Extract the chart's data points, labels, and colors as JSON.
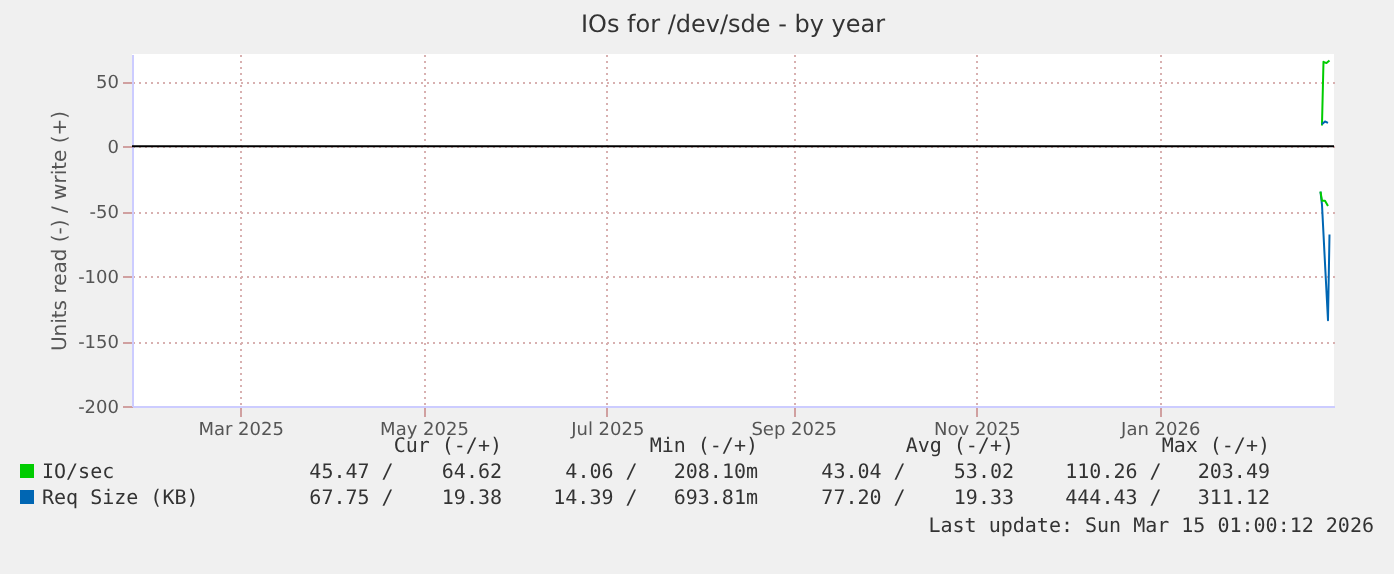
{
  "chart_data": {
    "type": "line",
    "title": "IOs for /dev/sde - by year",
    "ylabel": "Units read (-) / write (+)",
    "xlim": [
      "2025-02-08",
      "2026-03-15"
    ],
    "xticks": [
      {
        "value": "2025-03-16",
        "label": "Mar 2025"
      },
      {
        "value": "2025-05-16",
        "label": "May 2025"
      },
      {
        "value": "2025-07-16",
        "label": "Jul 2025"
      },
      {
        "value": "2025-09-16",
        "label": "Sep 2025"
      },
      {
        "value": "2025-11-16",
        "label": "Nov 2025"
      },
      {
        "value": "2026-01-16",
        "label": "Jan 2026"
      }
    ],
    "ylim": [
      -200,
      71
    ],
    "yticks": [
      -200,
      -150,
      -100,
      -50,
      0,
      50
    ],
    "grid": true,
    "legend": "bottom",
    "ref_lines": [
      {
        "axis": "y",
        "value": 0,
        "color": "#000000"
      }
    ],
    "series": [
      {
        "name": "IO/sec",
        "color": "#00cc00",
        "x": [
          "2026-03-11T00:00",
          "2026-03-11T12:00",
          "2026-03-12T12:00",
          "2026-03-13T12:00"
        ],
        "values": [
          16,
          65,
          64,
          66
        ]
      },
      {
        "name": "Req Size (KB)",
        "color": "#0066b3",
        "x": [
          "2026-03-10T12:00",
          "2026-03-11T00:00",
          "2026-03-12T00:00",
          "2026-03-13T00:00",
          "2026-03-13T12:00"
        ],
        "values": [
          -35,
          -45,
          -90,
          -134,
          -68
        ]
      },
      {
        "color": "#00cc00",
        "x": [
          "2026-03-10T12:00",
          "2026-03-11T00:00",
          "2026-03-12T00:00",
          "2026-03-13T00:00"
        ],
        "values": [
          -35,
          -42,
          -42,
          -46
        ]
      },
      {
        "color": "#0066b3",
        "x": [
          "2026-03-11T00:00",
          "2026-03-12T00:00",
          "2026-03-13T00:00"
        ],
        "values": [
          17,
          19,
          18
        ]
      }
    ],
    "annotations": [
      "Cur (-/+)",
      "Min (-/+)",
      "Avg (-/+)",
      "Max (-/+)",
      "45.47 /    64.62",
      "4.06 /   208.10m",
      "43.04 /    53.02",
      "110.26 /   203.49",
      "67.75 /    19.38",
      "14.39 /   693.81m",
      "77.20 /    19.33",
      "444.43 /   311.12",
      "Last update: Sun Mar 15 01:00:12 2026"
    ]
  }
}
